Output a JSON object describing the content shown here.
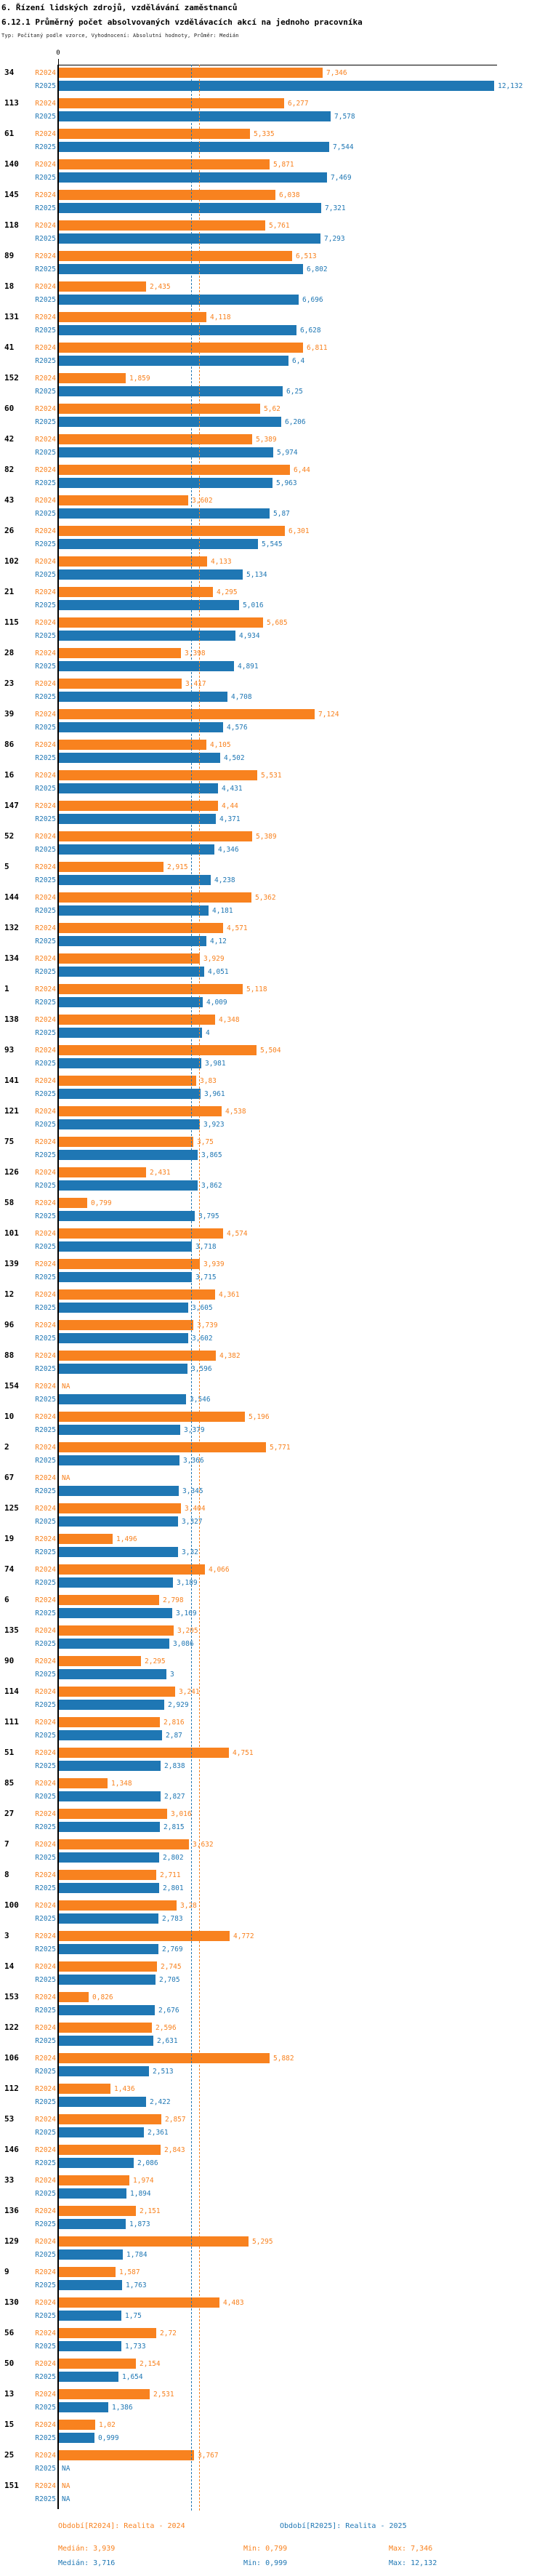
{
  "header": {
    "title": "6. Řízení lidských zdrojů, vzdělávání zaměstnanců",
    "subtitle": "6.12.1 Průměrný počet absolvovaných vzdělávacích akcí na jednoho pracovníka",
    "meta": "Typ: Počítaný podle vzorce, Vyhodnocení: Absolutní hodnoty, Průměr: Medián"
  },
  "chart_data": {
    "type": "bar",
    "orientation": "horizontal",
    "title": "6.12.1 Průměrný počet absolvovaných vzdělávacích akcí na jednoho pracovníka",
    "xlabel": "",
    "ylabel": "organizace (ID)",
    "axis": {
      "zero_tick_label": "0",
      "xlim": [
        0,
        12.24
      ],
      "grid": false,
      "na_text": "NA"
    },
    "decimal_separator": ",",
    "series_meta": [
      {
        "name": "R2024",
        "color": "#f8821f",
        "median": 3.939,
        "min": 0.799,
        "max": 7.346
      },
      {
        "name": "R2025",
        "color": "#1f77b4",
        "median": 3.716,
        "min": 0.999,
        "max": 12.132
      }
    ],
    "groups": [
      {
        "id": "34",
        "r2024": "7,346",
        "r2025": "12,132"
      },
      {
        "id": "113",
        "r2024": "6,277",
        "r2025": "7,578"
      },
      {
        "id": "61",
        "r2024": "5,335",
        "r2025": "7,544"
      },
      {
        "id": "140",
        "r2024": "5,871",
        "r2025": "7,469"
      },
      {
        "id": "145",
        "r2024": "6,038",
        "r2025": "7,321"
      },
      {
        "id": "118",
        "r2024": "5,761",
        "r2025": "7,293"
      },
      {
        "id": "89",
        "r2024": "6,513",
        "r2025": "6,802"
      },
      {
        "id": "18",
        "r2024": "2,435",
        "r2025": "6,696"
      },
      {
        "id": "131",
        "r2024": "4,118",
        "r2025": "6,628"
      },
      {
        "id": "41",
        "r2024": "6,811",
        "r2025": "6,4"
      },
      {
        "id": "152",
        "r2024": "1,859",
        "r2025": "6,25"
      },
      {
        "id": "60",
        "r2024": "5,62",
        "r2025": "6,206"
      },
      {
        "id": "42",
        "r2024": "5,389",
        "r2025": "5,974"
      },
      {
        "id": "82",
        "r2024": "6,44",
        "r2025": "5,963"
      },
      {
        "id": "43",
        "r2024": "3,602",
        "r2025": "5,87"
      },
      {
        "id": "26",
        "r2024": "6,301",
        "r2025": "5,545"
      },
      {
        "id": "102",
        "r2024": "4,133",
        "r2025": "5,134"
      },
      {
        "id": "21",
        "r2024": "4,295",
        "r2025": "5,016"
      },
      {
        "id": "115",
        "r2024": "5,685",
        "r2025": "4,934"
      },
      {
        "id": "28",
        "r2024": "3,398",
        "r2025": "4,891"
      },
      {
        "id": "23",
        "r2024": "3,417",
        "r2025": "4,708"
      },
      {
        "id": "39",
        "r2024": "7,124",
        "r2025": "4,576"
      },
      {
        "id": "86",
        "r2024": "4,105",
        "r2025": "4,502"
      },
      {
        "id": "16",
        "r2024": "5,531",
        "r2025": "4,431"
      },
      {
        "id": "147",
        "r2024": "4,44",
        "r2025": "4,371"
      },
      {
        "id": "52",
        "r2024": "5,389",
        "r2025": "4,346"
      },
      {
        "id": "5",
        "r2024": "2,915",
        "r2025": "4,238"
      },
      {
        "id": "144",
        "r2024": "5,362",
        "r2025": "4,181"
      },
      {
        "id": "132",
        "r2024": "4,571",
        "r2025": "4,12"
      },
      {
        "id": "134",
        "r2024": "3,929",
        "r2025": "4,051"
      },
      {
        "id": "1",
        "r2024": "5,118",
        "r2025": "4,009"
      },
      {
        "id": "138",
        "r2024": "4,348",
        "r2025": "4"
      },
      {
        "id": "93",
        "r2024": "5,504",
        "r2025": "3,981"
      },
      {
        "id": "141",
        "r2024": "3,83",
        "r2025": "3,961"
      },
      {
        "id": "121",
        "r2024": "4,538",
        "r2025": "3,923"
      },
      {
        "id": "75",
        "r2024": "3,75",
        "r2025": "3,865"
      },
      {
        "id": "126",
        "r2024": "2,431",
        "r2025": "3,862"
      },
      {
        "id": "58",
        "r2024": "0,799",
        "r2025": "3,795"
      },
      {
        "id": "101",
        "r2024": "4,574",
        "r2025": "3,718"
      },
      {
        "id": "139",
        "r2024": "3,939",
        "r2025": "3,715"
      },
      {
        "id": "12",
        "r2024": "4,361",
        "r2025": "3,605"
      },
      {
        "id": "96",
        "r2024": "3,739",
        "r2025": "3,602"
      },
      {
        "id": "88",
        "r2024": "4,382",
        "r2025": "3,596"
      },
      {
        "id": "154",
        "r2024": "NA",
        "r2025": "3,546"
      },
      {
        "id": "10",
        "r2024": "5,196",
        "r2025": "3,379"
      },
      {
        "id": "2",
        "r2024": "5,771",
        "r2025": "3,366"
      },
      {
        "id": "67",
        "r2024": "NA",
        "r2025": "3,345"
      },
      {
        "id": "125",
        "r2024": "3,404",
        "r2025": "3,327"
      },
      {
        "id": "19",
        "r2024": "1,496",
        "r2025": "3,32"
      },
      {
        "id": "74",
        "r2024": "4,066",
        "r2025": "3,189"
      },
      {
        "id": "6",
        "r2024": "2,798",
        "r2025": "3,169"
      },
      {
        "id": "135",
        "r2024": "3,205",
        "r2025": "3,086"
      },
      {
        "id": "90",
        "r2024": "2,295",
        "r2025": "3"
      },
      {
        "id": "114",
        "r2024": "3,241",
        "r2025": "2,929"
      },
      {
        "id": "111",
        "r2024": "2,816",
        "r2025": "2,87"
      },
      {
        "id": "51",
        "r2024": "4,751",
        "r2025": "2,838"
      },
      {
        "id": "85",
        "r2024": "1,348",
        "r2025": "2,827"
      },
      {
        "id": "27",
        "r2024": "3,016",
        "r2025": "2,815"
      },
      {
        "id": "7",
        "r2024": "3,632",
        "r2025": "2,802"
      },
      {
        "id": "8",
        "r2024": "2,711",
        "r2025": "2,801"
      },
      {
        "id": "100",
        "r2024": "3,28",
        "r2025": "2,783"
      },
      {
        "id": "3",
        "r2024": "4,772",
        "r2025": "2,769"
      },
      {
        "id": "14",
        "r2024": "2,745",
        "r2025": "2,705"
      },
      {
        "id": "153",
        "r2024": "0,826",
        "r2025": "2,676"
      },
      {
        "id": "122",
        "r2024": "2,596",
        "r2025": "2,631"
      },
      {
        "id": "106",
        "r2024": "5,882",
        "r2025": "2,513"
      },
      {
        "id": "112",
        "r2024": "1,436",
        "r2025": "2,422"
      },
      {
        "id": "53",
        "r2024": "2,857",
        "r2025": "2,361"
      },
      {
        "id": "146",
        "r2024": "2,843",
        "r2025": "2,086"
      },
      {
        "id": "33",
        "r2024": "1,974",
        "r2025": "1,894"
      },
      {
        "id": "136",
        "r2024": "2,151",
        "r2025": "1,873"
      },
      {
        "id": "129",
        "r2024": "5,295",
        "r2025": "1,784"
      },
      {
        "id": "9",
        "r2024": "1,587",
        "r2025": "1,763"
      },
      {
        "id": "130",
        "r2024": "4,483",
        "r2025": "1,75"
      },
      {
        "id": "56",
        "r2024": "2,72",
        "r2025": "1,733"
      },
      {
        "id": "50",
        "r2024": "2,154",
        "r2025": "1,654"
      },
      {
        "id": "13",
        "r2024": "2,531",
        "r2025": "1,386"
      },
      {
        "id": "15",
        "r2024": "1,02",
        "r2025": "0,999"
      },
      {
        "id": "25",
        "r2024": "3,767",
        "r2025": "NA"
      },
      {
        "id": "151",
        "r2024": "NA",
        "r2025": "NA"
      }
    ]
  },
  "legend": {
    "r2024": {
      "period": "Období[R2024]: Realita - 2024",
      "median": "Medián: 3,939",
      "min": "Min: 0,799",
      "max": "Max: 7,346"
    },
    "r2025": {
      "period": "Období[R2025]: Realita - 2025",
      "median": "Medián: 3,716",
      "min": "Min: 0,999",
      "max": "Max: 12,132"
    }
  }
}
